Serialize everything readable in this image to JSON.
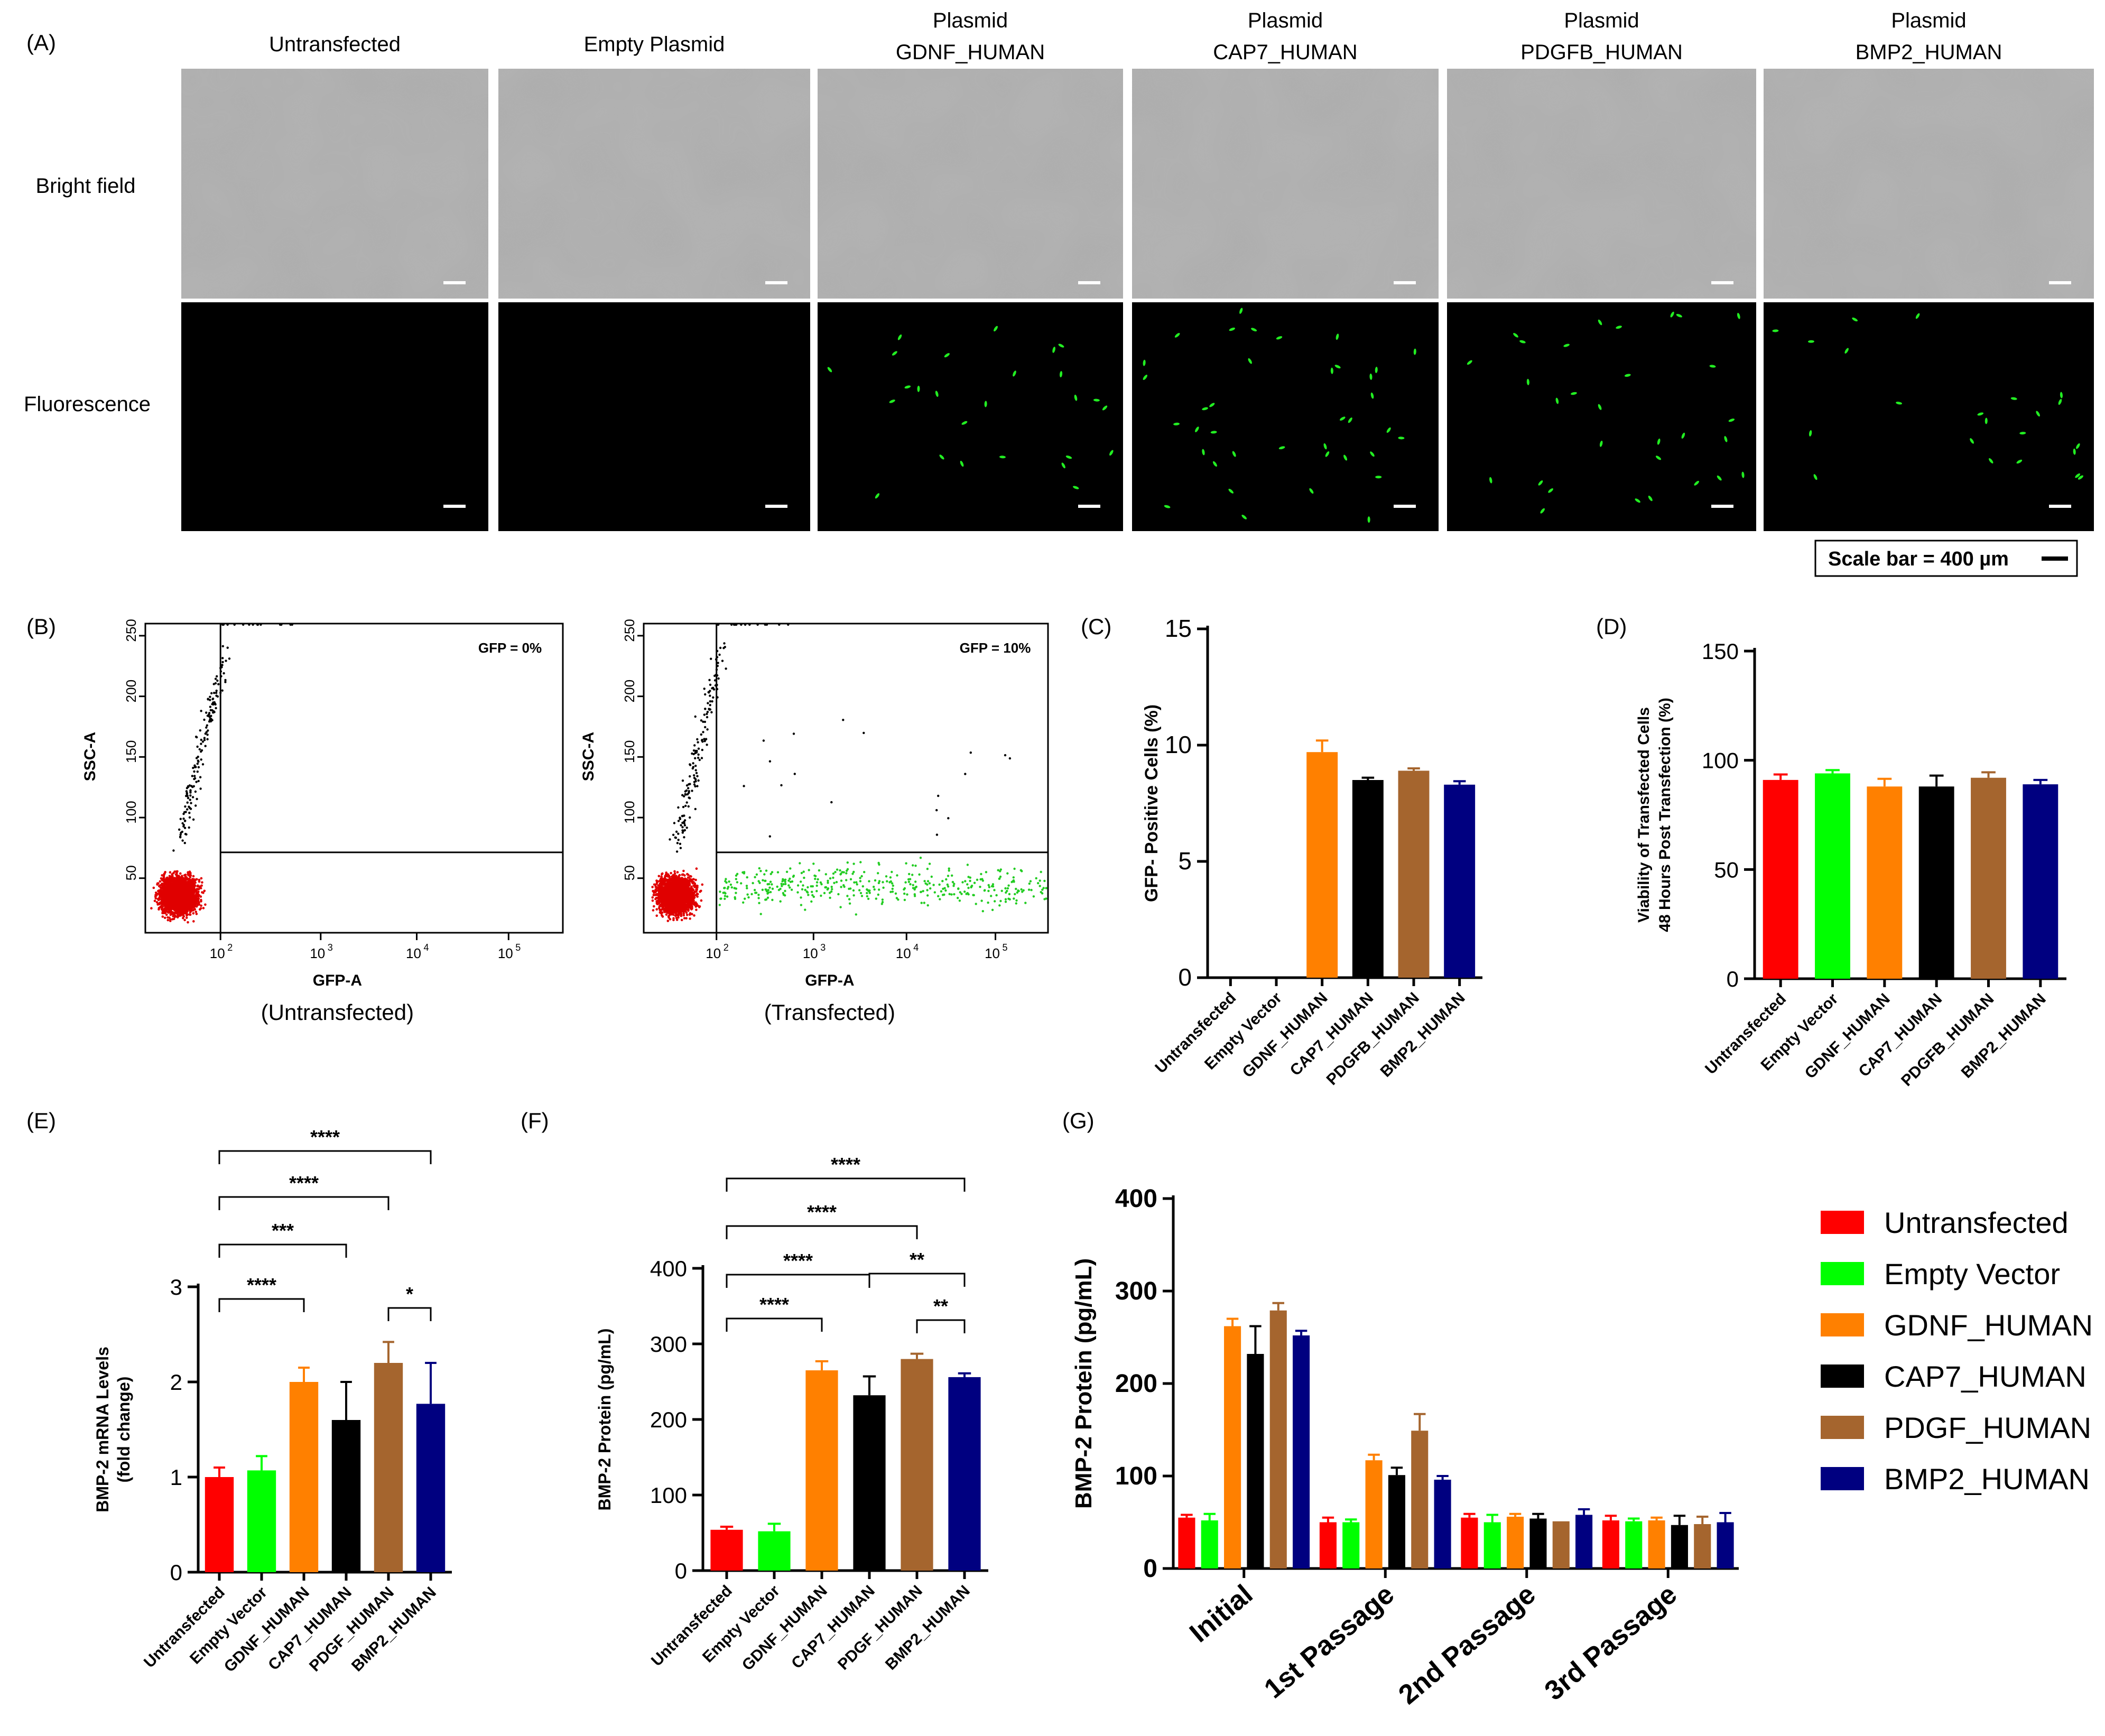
{
  "panels": {
    "A": "(A)",
    "B": "(B)",
    "C": "(C)",
    "D": "(D)",
    "E": "(E)",
    "F": "(F)",
    "G": "(G)"
  },
  "panel_a": {
    "columns": [
      {
        "line1": "",
        "line2": "Untransfected"
      },
      {
        "line1": "",
        "line2": "Empty Plasmid"
      },
      {
        "line1": "Plasmid",
        "line2": "GDNF_HUMAN"
      },
      {
        "line1": "Plasmid",
        "line2": "CAP7_HUMAN"
      },
      {
        "line1": "Plasmid",
        "line2": "PDGFB_HUMAN"
      },
      {
        "line1": "Plasmid",
        "line2": "BMP2_HUMAN"
      }
    ],
    "rows": [
      "Bright field",
      "Fluorescence"
    ],
    "scale_bar": "Scale bar = 400 µm",
    "colors": {
      "bright": "#b4b4b4",
      "fluor_bg": "#000000",
      "gfp": "#22ee22"
    }
  },
  "chart_data": [
    {
      "id": "B-left",
      "type": "scatter",
      "xlabel": "GFP-A",
      "ylabel": "SSC-A",
      "x_ticks": [
        "10",
        "10",
        "10",
        "10"
      ],
      "x_tick_exp": [
        "2",
        "3",
        "4",
        "5"
      ],
      "y_ticks": [
        "50",
        "100",
        "150",
        "200",
        "250"
      ],
      "gate_label": "GFP = 0%",
      "caption": "(Untransfected)",
      "colors": {
        "neg": "#e00000",
        "mid": "#000000",
        "pos": "#22cc22"
      }
    },
    {
      "id": "B-right",
      "type": "scatter",
      "xlabel": "GFP-A",
      "ylabel": "SSC-A",
      "x_ticks": [
        "10",
        "10",
        "10",
        "10"
      ],
      "x_tick_exp": [
        "2",
        "3",
        "4",
        "5"
      ],
      "y_ticks": [
        "50",
        "100",
        "150",
        "200",
        "250"
      ],
      "gate_label": "GFP = 10%",
      "caption": "(Transfected)",
      "colors": {
        "neg": "#e00000",
        "mid": "#000000",
        "pos": "#22cc22"
      }
    },
    {
      "id": "C",
      "type": "bar",
      "ylabel": "GFP- Positive Cells (%)",
      "categories": [
        "Untransfected",
        "Empty Vector",
        "GDNF_HUMAN",
        "CAP7_HUMAN",
        "PDGFB_HUMAN",
        "BMP2_HUMAN"
      ],
      "values": [
        0,
        0,
        9.7,
        8.5,
        8.9,
        8.3
      ],
      "errors": [
        0,
        0,
        0.5,
        0.1,
        0.1,
        0.15
      ],
      "colors": [
        "#ff0000",
        "#00ff00",
        "#ff8000",
        "#000000",
        "#a5652e",
        "#000080"
      ],
      "ylim": [
        0,
        15
      ],
      "yticks": [
        "0",
        "5",
        "10",
        "15"
      ]
    },
    {
      "id": "D",
      "type": "bar",
      "ylabel_lines": [
        "Viability of Transfected Cells",
        "48 Hours Post Transfection (%)"
      ],
      "categories": [
        "Untransfected",
        "Empty Vector",
        "GDNF_HUMAN",
        "CAP7_HUMAN",
        "PDGFB_HUMAN",
        "BMP2_HUMAN"
      ],
      "values": [
        91,
        94,
        88,
        88,
        92,
        89
      ],
      "errors": [
        2.5,
        1.5,
        3.5,
        5,
        2.5,
        2
      ],
      "colors": [
        "#ff0000",
        "#00ff00",
        "#ff8000",
        "#000000",
        "#a5652e",
        "#000080"
      ],
      "ylim": [
        0,
        150
      ],
      "yticks": [
        "0",
        "50",
        "100",
        "150"
      ]
    },
    {
      "id": "E",
      "type": "bar",
      "ylabel_lines": [
        "BMP-2 mRNA Levels",
        "(fold change)"
      ],
      "categories": [
        "Untransfected",
        "Empty Vector",
        "GDNF_HUMAN",
        "CAP7_HUMAN",
        "PDGF_HUMAN",
        "BMP2_HUMAN"
      ],
      "values": [
        1.0,
        1.07,
        2.0,
        1.6,
        2.2,
        1.77
      ],
      "errors": [
        0.1,
        0.15,
        0.15,
        0.4,
        0.22,
        0.43
      ],
      "colors": [
        "#ff0000",
        "#00ff00",
        "#ff8000",
        "#000000",
        "#a5652e",
        "#000080"
      ],
      "ylim": [
        0,
        3
      ],
      "yticks": [
        "0",
        "1",
        "2",
        "3"
      ],
      "significance": [
        {
          "from": 0,
          "to": 2,
          "label": "****"
        },
        {
          "from": 0,
          "to": 3,
          "label": "***"
        },
        {
          "from": 0,
          "to": 4,
          "label": "****"
        },
        {
          "from": 0,
          "to": 5,
          "label": "****"
        },
        {
          "from": 4,
          "to": 5,
          "label": "*"
        }
      ]
    },
    {
      "id": "F",
      "type": "bar",
      "ylabel": "BMP-2 Protein (pg/mL)",
      "categories": [
        "Untransfected",
        "Empty Vector",
        "GDNF_HUMAN",
        "CAP7_HUMAN",
        "PDGF_HUMAN",
        "BMP2_HUMAN"
      ],
      "values": [
        54,
        52,
        265,
        232,
        280,
        256
      ],
      "errors": [
        4,
        10,
        12,
        25,
        7,
        5
      ],
      "colors": [
        "#ff0000",
        "#00ff00",
        "#ff8000",
        "#000000",
        "#a5652e",
        "#000080"
      ],
      "ylim": [
        0,
        400
      ],
      "yticks": [
        "0",
        "100",
        "200",
        "300",
        "400"
      ],
      "significance": [
        {
          "from": 0,
          "to": 2,
          "label": "****"
        },
        {
          "from": 0,
          "to": 3,
          "label": "****"
        },
        {
          "from": 0,
          "to": 4,
          "label": "****"
        },
        {
          "from": 0,
          "to": 5,
          "label": "****"
        },
        {
          "from": 3,
          "to": 5,
          "label": "**"
        },
        {
          "from": 4,
          "to": 5,
          "label": "**"
        }
      ]
    },
    {
      "id": "G",
      "type": "bar",
      "ylabel": "BMP-2 Protein (pg/mL)",
      "categories": [
        "Initial",
        "1st Passage",
        "2nd Passage",
        "3rd Passage"
      ],
      "series": [
        {
          "name": "Untransfected",
          "color": "#ff0000",
          "values": [
            55,
            50,
            55,
            52
          ],
          "errors": [
            3,
            5,
            4,
            5
          ]
        },
        {
          "name": "Empty Vector",
          "color": "#00ff00",
          "values": [
            52,
            50,
            50,
            51
          ],
          "errors": [
            7,
            3,
            8,
            3
          ]
        },
        {
          "name": "GDNF_HUMAN",
          "color": "#ff8000",
          "values": [
            262,
            117,
            56,
            52
          ],
          "errors": [
            8,
            6,
            3,
            3
          ]
        },
        {
          "name": "CAP7_HUMAN",
          "color": "#000000",
          "values": [
            232,
            101,
            54,
            47
          ],
          "errors": [
            30,
            8,
            5,
            10
          ]
        },
        {
          "name": "PDGF_HUMAN",
          "color": "#a5652e",
          "values": [
            279,
            149,
            51,
            48
          ],
          "errors": [
            8,
            18,
            0,
            8
          ]
        },
        {
          "name": "BMP2_HUMAN",
          "color": "#000080",
          "values": [
            252,
            96,
            58,
            50
          ],
          "errors": [
            5,
            4,
            6,
            10
          ]
        }
      ],
      "ylim": [
        0,
        400
      ],
      "yticks": [
        "0",
        "100",
        "200",
        "300",
        "400"
      ]
    }
  ]
}
